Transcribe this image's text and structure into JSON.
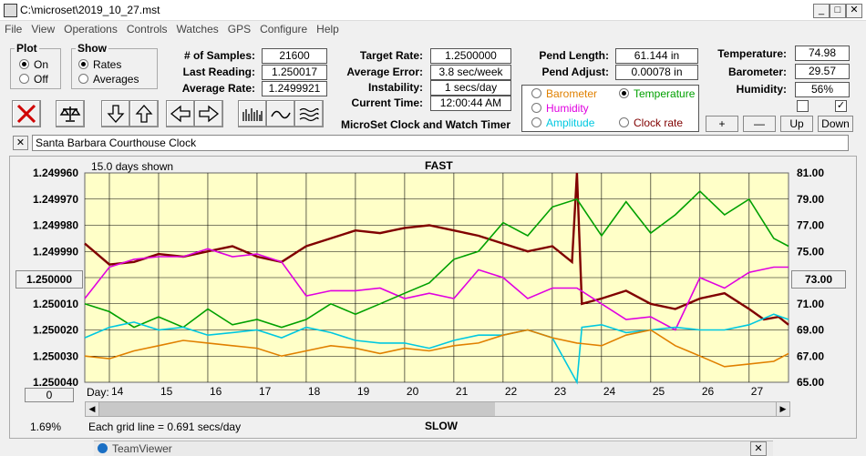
{
  "window": {
    "title": "C:\\microset\\2019_10_27.mst"
  },
  "menu": [
    "File",
    "View",
    "Operations",
    "Controls",
    "Watches",
    "GPS",
    "Configure",
    "Help"
  ],
  "plot_group": {
    "label": "Plot",
    "on": "On",
    "off": "Off",
    "selected": "On"
  },
  "show_group": {
    "label": "Show",
    "rates": "Rates",
    "averages": "Averages",
    "selected": "Rates"
  },
  "samples": {
    "label": "# of Samples:",
    "value": "21600"
  },
  "last_reading": {
    "label": "Last Reading:",
    "value": "1.250017"
  },
  "average_rate": {
    "label": "Average Rate:",
    "value": "1.2499921"
  },
  "target_rate": {
    "label": "Target Rate:",
    "value": "1.2500000"
  },
  "average_error": {
    "label": "Average Error:",
    "value": "3.8 sec/week"
  },
  "instability": {
    "label": "Instability:",
    "value": "1 secs/day"
  },
  "current_time": {
    "label": "Current Time:",
    "value": "12:00:44 AM"
  },
  "app_caption": "MicroSet Clock and Watch Timer",
  "pend_length": {
    "label": "Pend Length:",
    "value": "61.144 in"
  },
  "pend_adjust": {
    "label": "Pend Adjust:",
    "value": "0.00078 in"
  },
  "temperature": {
    "label": "Temperature:",
    "value": "74.98"
  },
  "barometer": {
    "label": "Barometer:",
    "value": "29.57"
  },
  "humidity": {
    "label": "Humidity:",
    "value": "56%"
  },
  "overlay_options": {
    "barometer": "Barometer",
    "temperature": "Temperature",
    "humidity": "Humidity",
    "amplitude": "Amplitude",
    "clock_rate": "Clock rate",
    "selected": "Temperature",
    "colors": {
      "barometer": "#e08000",
      "temperature": "#00a000",
      "humidity": "#e000e0",
      "amplitude": "#00c8e0",
      "clock_rate": "#800000"
    }
  },
  "scale_buttons": {
    "plus": "+",
    "minus": "—",
    "up": "Up",
    "down": "Down"
  },
  "watch_name": "Santa Barbara Courthouse Clock",
  "clear_label": "✕",
  "chart_header": {
    "days_shown": "15.0 days shown",
    "fast": "FAST",
    "slow": "SLOW"
  },
  "left_center_button": "1.250000",
  "right_center_button": "73.00",
  "zero_button": "0",
  "day_label": "Day:",
  "percent": "1.69%",
  "grid_note": "Each grid line = 0.691 secs/day",
  "taskbar_item": "TeamViewer",
  "chart_data": {
    "type": "line",
    "x": [
      13.5,
      27.8
    ],
    "x_ticks": [
      14,
      15,
      16,
      17,
      18,
      19,
      20,
      21,
      22,
      23,
      24,
      25,
      26,
      27
    ],
    "y_left_ticks": [
      "1.249960",
      "1.249970",
      "1.249980",
      "1.249990",
      "1.250000",
      "1.250010",
      "1.250020",
      "1.250030",
      "1.250040"
    ],
    "y_right_ticks": [
      "81.00",
      "79.00",
      "77.00",
      "75.00",
      "73.00",
      "71.00",
      "69.00",
      "67.00",
      "65.00"
    ],
    "y_left_range": [
      1.24996,
      1.25004
    ],
    "y_right_range": [
      65,
      81
    ],
    "grid": true,
    "background": "#ffffc8",
    "series": [
      {
        "key": "clock_rate",
        "color": "#800000",
        "points": [
          [
            13.5,
            1.249987
          ],
          [
            14,
            1.249995
          ],
          [
            14.5,
            1.249994
          ],
          [
            15,
            1.249991
          ],
          [
            15.5,
            1.249992
          ],
          [
            16,
            1.24999
          ],
          [
            16.5,
            1.249988
          ],
          [
            17,
            1.249992
          ],
          [
            17.5,
            1.249994
          ],
          [
            18,
            1.249988
          ],
          [
            18.5,
            1.249985
          ],
          [
            19,
            1.249982
          ],
          [
            19.5,
            1.249983
          ],
          [
            20,
            1.249981
          ],
          [
            20.5,
            1.24998
          ],
          [
            21,
            1.249982
          ],
          [
            21.5,
            1.249984
          ],
          [
            22,
            1.249987
          ],
          [
            22.5,
            1.24999
          ],
          [
            23,
            1.249988
          ],
          [
            23.4,
            1.249994
          ],
          [
            23.5,
            1.24996
          ],
          [
            23.6,
            1.25001
          ],
          [
            24,
            1.250008
          ],
          [
            24.5,
            1.250005
          ],
          [
            25,
            1.25001
          ],
          [
            25.5,
            1.250012
          ],
          [
            26,
            1.250008
          ],
          [
            26.5,
            1.250006
          ],
          [
            27,
            1.250012
          ],
          [
            27.3,
            1.250016
          ],
          [
            27.6,
            1.250015
          ],
          [
            27.8,
            1.250018
          ]
        ]
      },
      {
        "key": "humidity",
        "color": "#e000e0",
        "points": [
          [
            13.5,
            1.250008
          ],
          [
            14,
            1.249996
          ],
          [
            14.5,
            1.249993
          ],
          [
            15,
            1.249992
          ],
          [
            15.5,
            1.249992
          ],
          [
            16,
            1.249989
          ],
          [
            16.5,
            1.249992
          ],
          [
            17,
            1.249991
          ],
          [
            17.5,
            1.249994
          ],
          [
            18,
            1.250007
          ],
          [
            18.5,
            1.250005
          ],
          [
            19,
            1.250005
          ],
          [
            19.5,
            1.250004
          ],
          [
            20,
            1.250008
          ],
          [
            20.5,
            1.250006
          ],
          [
            21,
            1.250008
          ],
          [
            21.5,
            1.249997
          ],
          [
            22,
            1.25
          ],
          [
            22.5,
            1.250008
          ],
          [
            23,
            1.250004
          ],
          [
            23.5,
            1.250004
          ],
          [
            24,
            1.25001
          ],
          [
            24.5,
            1.250016
          ],
          [
            25,
            1.250015
          ],
          [
            25.5,
            1.25002
          ],
          [
            26,
            1.25
          ],
          [
            26.5,
            1.250004
          ],
          [
            27,
            1.249998
          ],
          [
            27.5,
            1.249996
          ],
          [
            27.8,
            1.249996
          ]
        ]
      },
      {
        "key": "temperature",
        "color": "#00a000",
        "points": [
          [
            13.5,
            1.25001
          ],
          [
            14,
            1.250013
          ],
          [
            14.5,
            1.250019
          ],
          [
            15,
            1.250015
          ],
          [
            15.5,
            1.250019
          ],
          [
            16,
            1.250012
          ],
          [
            16.5,
            1.250018
          ],
          [
            17,
            1.250016
          ],
          [
            17.5,
            1.250019
          ],
          [
            18,
            1.250016
          ],
          [
            18.5,
            1.25001
          ],
          [
            19,
            1.250014
          ],
          [
            19.5,
            1.25001
          ],
          [
            20,
            1.250006
          ],
          [
            20.5,
            1.250002
          ],
          [
            21,
            1.249993
          ],
          [
            21.5,
            1.24999
          ],
          [
            22,
            1.249979
          ],
          [
            22.5,
            1.249984
          ],
          [
            23,
            1.249973
          ],
          [
            23.5,
            1.24997
          ],
          [
            24,
            1.249984
          ],
          [
            24.5,
            1.249971
          ],
          [
            25,
            1.249983
          ],
          [
            25.5,
            1.249976
          ],
          [
            26,
            1.249967
          ],
          [
            26.5,
            1.249976
          ],
          [
            27,
            1.24997
          ],
          [
            27.5,
            1.249985
          ],
          [
            27.8,
            1.249988
          ]
        ]
      },
      {
        "key": "amplitude",
        "color": "#00c8e0",
        "points": [
          [
            13.5,
            1.250023
          ],
          [
            14,
            1.250019
          ],
          [
            14.5,
            1.250017
          ],
          [
            15,
            1.25002
          ],
          [
            15.5,
            1.250019
          ],
          [
            16,
            1.250022
          ],
          [
            16.5,
            1.250021
          ],
          [
            17,
            1.25002
          ],
          [
            17.5,
            1.250023
          ],
          [
            18,
            1.250019
          ],
          [
            18.5,
            1.250021
          ],
          [
            19,
            1.250024
          ],
          [
            19.5,
            1.250025
          ],
          [
            20,
            1.250025
          ],
          [
            20.5,
            1.250027
          ],
          [
            21,
            1.250024
          ],
          [
            21.5,
            1.250022
          ],
          [
            22,
            1.250022
          ],
          [
            22.5,
            1.25002
          ],
          [
            23,
            1.250023
          ],
          [
            23.5,
            1.25004
          ],
          [
            23.6,
            1.250019
          ],
          [
            24,
            1.250018
          ],
          [
            24.5,
            1.250021
          ],
          [
            25,
            1.25002
          ],
          [
            25.5,
            1.250019
          ],
          [
            26,
            1.25002
          ],
          [
            26.5,
            1.25002
          ],
          [
            27,
            1.250018
          ],
          [
            27.5,
            1.250014
          ],
          [
            27.8,
            1.250016
          ]
        ]
      },
      {
        "key": "barometer",
        "color": "#e08000",
        "points": [
          [
            13.5,
            1.25003
          ],
          [
            14,
            1.250031
          ],
          [
            14.5,
            1.250028
          ],
          [
            15,
            1.250026
          ],
          [
            15.5,
            1.250024
          ],
          [
            16,
            1.250025
          ],
          [
            16.5,
            1.250026
          ],
          [
            17,
            1.250027
          ],
          [
            17.5,
            1.25003
          ],
          [
            18,
            1.250028
          ],
          [
            18.5,
            1.250026
          ],
          [
            19,
            1.250027
          ],
          [
            19.5,
            1.250029
          ],
          [
            20,
            1.250027
          ],
          [
            20.5,
            1.250028
          ],
          [
            21,
            1.250026
          ],
          [
            21.5,
            1.250025
          ],
          [
            22,
            1.250022
          ],
          [
            22.5,
            1.25002
          ],
          [
            23,
            1.250023
          ],
          [
            23.5,
            1.250025
          ],
          [
            24,
            1.250026
          ],
          [
            24.5,
            1.250022
          ],
          [
            25,
            1.25002
          ],
          [
            25.5,
            1.250026
          ],
          [
            26,
            1.25003
          ],
          [
            26.5,
            1.250034
          ],
          [
            27,
            1.250033
          ],
          [
            27.5,
            1.250032
          ],
          [
            27.8,
            1.250029
          ]
        ]
      }
    ]
  }
}
